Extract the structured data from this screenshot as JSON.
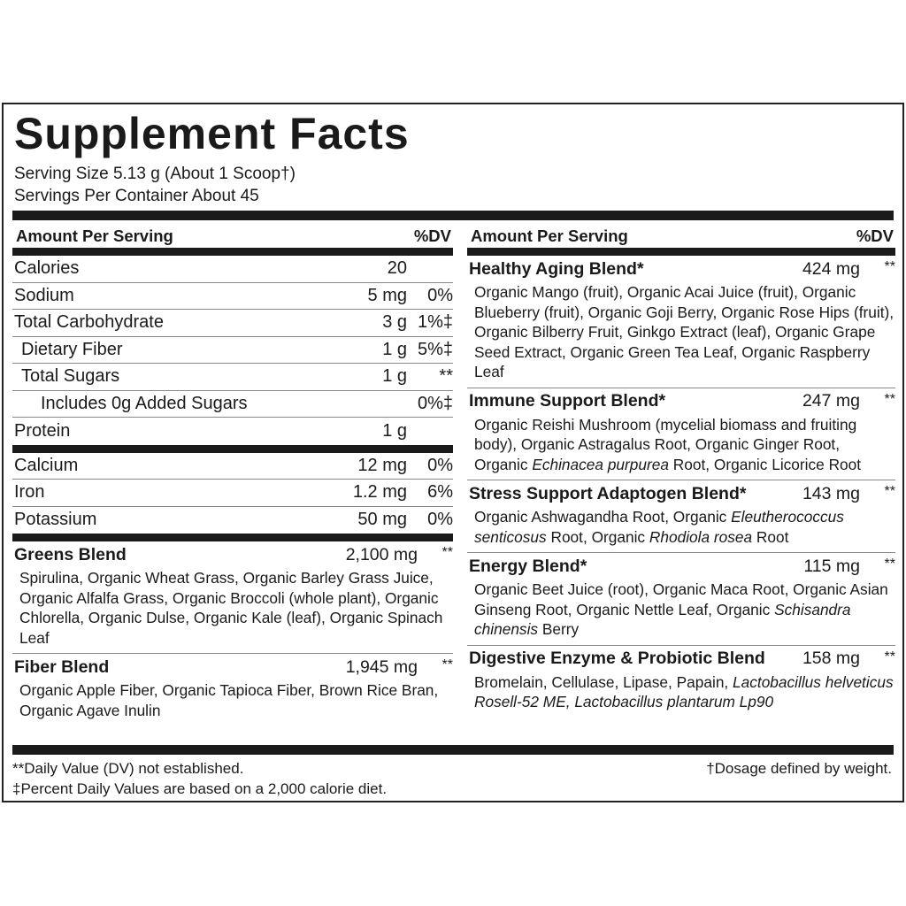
{
  "title": "Supplement Facts",
  "serving_size": "Serving Size 5.13 g (About 1 Scoop†)",
  "servings_per_container": "Servings Per Container About 45",
  "header": {
    "amount": "Amount Per Serving",
    "dv": "%DV"
  },
  "nutrients_a": [
    {
      "label": "Calories",
      "amount": "20",
      "dv": "",
      "indent": 0
    },
    {
      "label": "Sodium",
      "amount": "5 mg",
      "dv": "0%",
      "indent": 0
    },
    {
      "label": "Total Carbohydrate",
      "amount": "3 g",
      "dv": "1%‡",
      "indent": 0
    },
    {
      "label": "Dietary Fiber",
      "amount": "1 g",
      "dv": "5%‡",
      "indent": 1
    },
    {
      "label": "Total Sugars",
      "amount": "1 g",
      "dv": "**",
      "indent": 1
    },
    {
      "label": "Includes 0g Added Sugars",
      "amount": "",
      "dv": "0%‡",
      "indent": 2
    },
    {
      "label": "Protein",
      "amount": "1 g",
      "dv": "",
      "indent": 0
    }
  ],
  "nutrients_b": [
    {
      "label": "Calcium",
      "amount": "12 mg",
      "dv": "0%"
    },
    {
      "label": "Iron",
      "amount": "1.2 mg",
      "dv": "6%"
    },
    {
      "label": "Potassium",
      "amount": "50 mg",
      "dv": "0%"
    }
  ],
  "left_blends": [
    {
      "name": "Greens Blend",
      "amount": "2,100 mg",
      "dv": "**",
      "ingredients": [
        {
          "t": "Spirulina, Organic Wheat Grass, Organic Barley Grass Juice, Organic Alfalfa Grass, Organic Broccoli (whole plant), Organic Chlorella, Organic Dulse, Organic Kale (leaf), Organic Spinach Leaf"
        }
      ]
    },
    {
      "name": "Fiber Blend",
      "amount": "1,945 mg",
      "dv": "**",
      "ingredients": [
        {
          "t": "Organic Apple Fiber, Organic Tapioca Fiber, Brown Rice Bran, Organic Agave Inulin"
        }
      ]
    }
  ],
  "right_blends": [
    {
      "name": "Healthy Aging Blend*",
      "amount": "424 mg",
      "dv": "**",
      "ingredients": [
        {
          "t": "Organic Mango (fruit), Organic Acai Juice (fruit), Organic Blueberry (fruit), Organic Goji Berry, Organic Rose Hips (fruit), Organic Bilberry Fruit, Ginkgo Extract (leaf), Organic Grape Seed Extract, Organic Green Tea Leaf, Organic Raspberry Leaf"
        }
      ]
    },
    {
      "name": "Immune Support Blend*",
      "amount": "247 mg",
      "dv": "**",
      "ingredients": [
        {
          "t": "Organic Reishi Mushroom (mycelial biomass and fruiting body), Organic Astragalus Root, Organic Ginger Root, Organic "
        },
        {
          "t": "Echinacea purpurea",
          "i": true
        },
        {
          "t": " Root, Organic Licorice Root"
        }
      ]
    },
    {
      "name": "Stress Support Adaptogen Blend*",
      "amount": "143 mg",
      "dv": "**",
      "ingredients": [
        {
          "t": "Organic Ashwagandha Root, Organic "
        },
        {
          "t": "Eleutherococcus senticosus",
          "i": true
        },
        {
          "t": " Root, Organic "
        },
        {
          "t": "Rhodiola rosea",
          "i": true
        },
        {
          "t": " Root"
        }
      ]
    },
    {
      "name": "Energy Blend*",
      "amount": "115 mg",
      "dv": "**",
      "ingredients": [
        {
          "t": "Organic Beet Juice (root), Organic Maca Root, Organic Asian Ginseng Root, Organic Nettle Leaf, Organic "
        },
        {
          "t": "Schisandra chinensis",
          "i": true
        },
        {
          "t": " Berry"
        }
      ]
    },
    {
      "name": "Digestive Enzyme & Probiotic Blend",
      "amount": "158 mg",
      "dv": "**",
      "ingredients": [
        {
          "t": "Bromelain, Cellulase, Lipase, Papain, "
        },
        {
          "t": "Lactobacillus helveticus Rosell-52 ME, Lactobacillus plantarum Lp90",
          "i": true
        }
      ]
    }
  ],
  "footnotes": {
    "dv": "**Daily Value (DV) not established.",
    "percent": "‡Percent Daily Values are based on a 2,000 calorie diet.",
    "dosage": "†Dosage defined by weight."
  }
}
